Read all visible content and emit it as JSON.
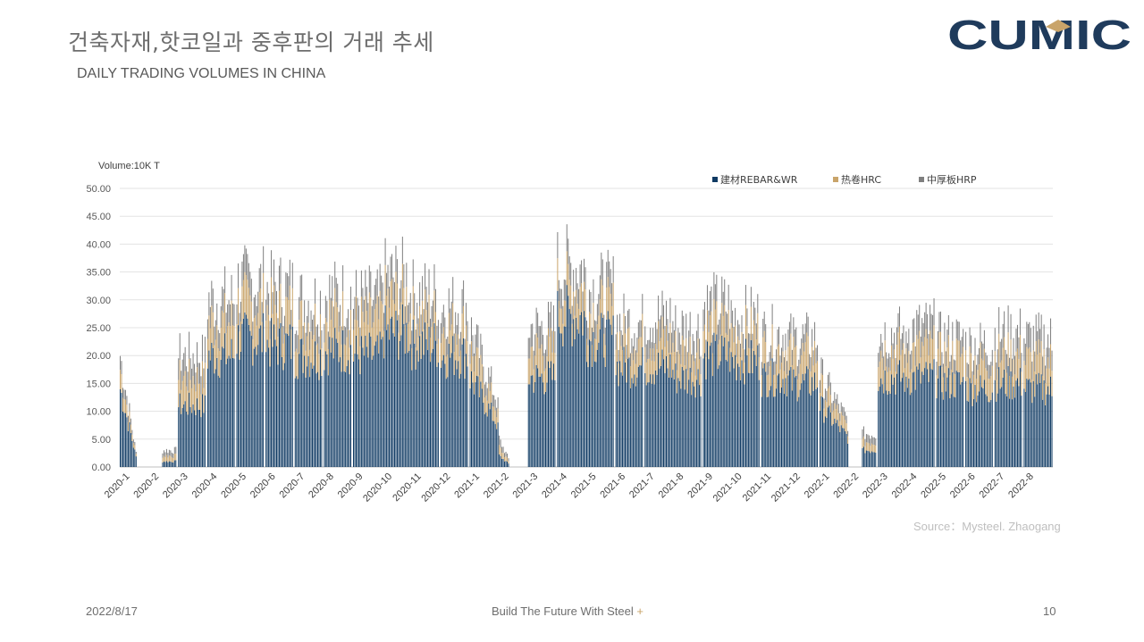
{
  "slide": {
    "title_korean": "건축자재,핫코일과 중후판의 거래 추세",
    "title_english": "DAILY TRADING VOLUMES IN CHINA",
    "logo_text": "CUMIC",
    "source": "Source：Mysteel. Zhaogang",
    "footer_date": "2022/8/17",
    "footer_tagline": "Build The Future With Steel",
    "footer_plus": "+",
    "page_number": "10"
  },
  "colors": {
    "rebar": "#0f3a63",
    "hrc": "#c9a46a",
    "hrp": "#7f7f7f",
    "logo": "#1f3b5c",
    "logo_accent": "#c9a46a"
  },
  "chart_data": {
    "type": "bar",
    "stacked": true,
    "ylabel": "Volume:10K T",
    "ylim": [
      0,
      50
    ],
    "yticks": [
      "0.00",
      "5.00",
      "10.00",
      "15.00",
      "20.00",
      "25.00",
      "30.00",
      "35.00",
      "40.00",
      "45.00",
      "50.00"
    ],
    "grid": true,
    "legend_position": "top-right",
    "series": [
      {
        "name": "建材REBAR&WR",
        "key": "rebar"
      },
      {
        "name": "热卷HRC",
        "key": "hrc"
      },
      {
        "name": "中厚板HRP",
        "key": "hrp"
      }
    ],
    "x_tick_labels": [
      "2020-1",
      "2020-2",
      "2020-3",
      "2020-4",
      "2020-5",
      "2020-6",
      "2020-7",
      "2020-8",
      "2020-9",
      "2020-10",
      "2020-11",
      "2020-12",
      "2021-1",
      "2021-2",
      "2021-3",
      "2021-4",
      "2021-5",
      "2021-6",
      "2021-7",
      "2021-8",
      "2021-9",
      "2021-10",
      "2021-11",
      "2021-12",
      "2022-1",
      "2022-2",
      "2022-3",
      "2022-4",
      "2022-5",
      "2022-6",
      "2022-7",
      "2022-8"
    ],
    "monthly_approx": [
      {
        "month": "2020-1",
        "total": 20,
        "rebar": 14,
        "hrc": 3.5,
        "hrp": 2.5
      },
      {
        "month": "2020-2",
        "total": 3,
        "rebar": 1,
        "hrc": 1,
        "hrp": 1
      },
      {
        "month": "2020-3",
        "total": 20,
        "rebar": 11,
        "hrc": 5,
        "hrp": 4
      },
      {
        "month": "2020-4",
        "total": 30,
        "rebar": 20,
        "hrc": 6,
        "hrp": 4
      },
      {
        "month": "2020-5",
        "total": 33,
        "rebar": 23,
        "hrc": 6,
        "hrp": 4
      },
      {
        "month": "2020-6",
        "total": 32,
        "rebar": 22,
        "hrc": 6,
        "hrp": 4
      },
      {
        "month": "2020-7",
        "total": 30,
        "rebar": 20,
        "hrc": 6,
        "hrp": 4
      },
      {
        "month": "2020-8",
        "total": 31,
        "rebar": 21,
        "hrc": 6,
        "hrp": 4
      },
      {
        "month": "2020-9",
        "total": 30,
        "rebar": 20,
        "hrc": 6,
        "hrp": 4
      },
      {
        "month": "2020-10",
        "total": 34,
        "rebar": 24,
        "hrc": 6,
        "hrp": 4
      },
      {
        "month": "2020-11",
        "total": 31,
        "rebar": 22,
        "hrc": 5,
        "hrp": 4
      },
      {
        "month": "2020-12",
        "total": 29,
        "rebar": 20,
        "hrc": 5,
        "hrp": 4
      },
      {
        "month": "2021-1",
        "total": 25,
        "rebar": 16,
        "hrc": 5,
        "hrp": 4
      },
      {
        "month": "2021-2",
        "total": 5,
        "rebar": 2,
        "hrc": 1.5,
        "hrp": 1.5
      },
      {
        "month": "2021-3",
        "total": 25,
        "rebar": 16,
        "hrc": 5,
        "hrp": 4
      },
      {
        "month": "2021-4",
        "total": 36,
        "rebar": 27,
        "hrc": 5,
        "hrp": 4
      },
      {
        "month": "2021-5",
        "total": 32,
        "rebar": 23,
        "hrc": 5,
        "hrp": 4
      },
      {
        "month": "2021-6",
        "total": 26,
        "rebar": 18,
        "hrc": 5,
        "hrp": 3
      },
      {
        "month": "2021-7",
        "total": 27,
        "rebar": 18,
        "hrc": 5,
        "hrp": 4
      },
      {
        "month": "2021-8",
        "total": 25,
        "rebar": 16,
        "hrc": 5,
        "hrp": 4
      },
      {
        "month": "2021-9",
        "total": 29,
        "rebar": 20,
        "hrc": 5,
        "hrp": 4
      },
      {
        "month": "2021-10",
        "total": 27,
        "rebar": 19,
        "hrc": 5,
        "hrp": 3
      },
      {
        "month": "2021-11",
        "total": 24,
        "rebar": 16,
        "hrc": 5,
        "hrp": 3
      },
      {
        "month": "2021-12",
        "total": 23,
        "rebar": 15,
        "hrc": 5,
        "hrp": 3
      },
      {
        "month": "2022-1",
        "total": 17,
        "rebar": 11,
        "hrc": 3.5,
        "hrp": 2.5
      },
      {
        "month": "2022-2",
        "total": 6,
        "rebar": 3,
        "hrc": 1.5,
        "hrp": 1.5
      },
      {
        "month": "2022-3",
        "total": 24,
        "rebar": 16,
        "hrc": 5,
        "hrp": 3
      },
      {
        "month": "2022-4",
        "total": 25,
        "rebar": 16,
        "hrc": 5,
        "hrp": 4
      },
      {
        "month": "2022-5",
        "total": 23,
        "rebar": 15,
        "hrc": 5,
        "hrp": 3
      },
      {
        "month": "2022-6",
        "total": 22,
        "rebar": 14,
        "hrc": 5,
        "hrp": 3
      },
      {
        "month": "2022-7",
        "total": 24,
        "rebar": 15,
        "hrc": 5,
        "hrp": 4
      },
      {
        "month": "2022-8",
        "total": 23,
        "rebar": 14,
        "hrc": 5,
        "hrp": 4
      }
    ]
  }
}
